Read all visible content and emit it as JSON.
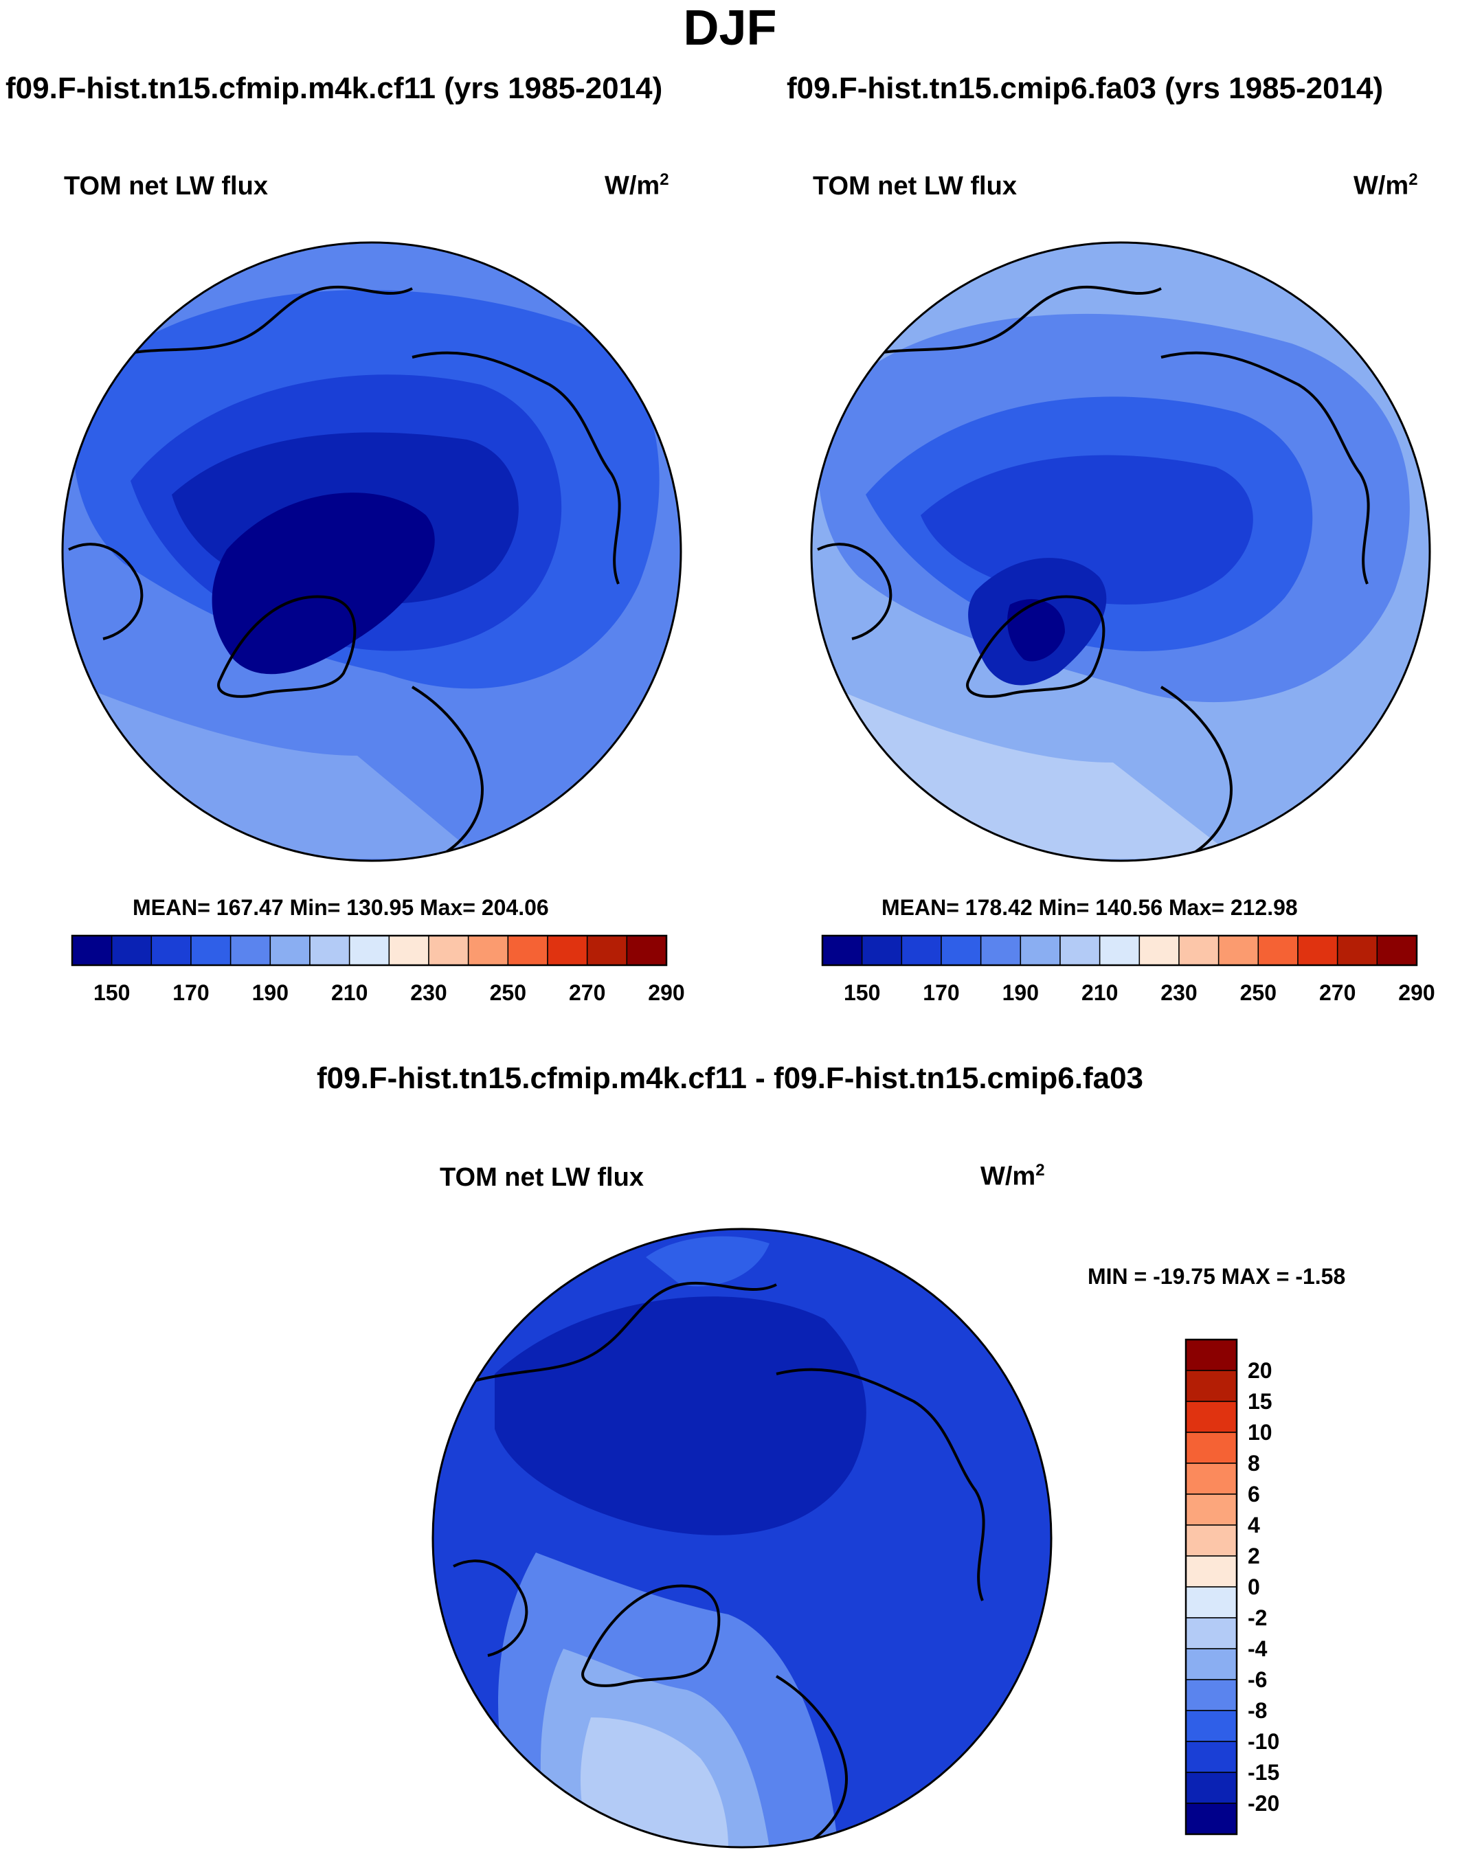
{
  "page_title": "DJF",
  "panels": [
    {
      "case_title": "f09.F-hist.tn15.cfmip.m4k.cf11 (yrs 1985-2014)",
      "variable": "TOM net LW flux",
      "units_base": "W/m",
      "units_exp": "2",
      "stats": "MEAN= 167.47  Min= 130.95  Max= 204.06"
    },
    {
      "case_title": "f09.F-hist.tn15.cmip6.fa03 (yrs 1985-2014)",
      "variable": "TOM net LW flux",
      "units_base": "W/m",
      "units_exp": "2",
      "stats": "MEAN= 178.42  Min= 140.56  Max= 212.98"
    }
  ],
  "diff_panel": {
    "title": "f09.F-hist.tn15.cfmip.m4k.cf11 - f09.F-hist.tn15.cmip6.fa03",
    "variable": "TOM net LW flux",
    "units_base": "W/m",
    "units_exp": "2",
    "minmax": "MIN = -19.75 MAX =  -1.58"
  },
  "chart_data": [
    {
      "type": "heatmap",
      "projection": "north polar stereographic",
      "title": "TOM net LW flux",
      "case": "f09.F-hist.tn15.cfmip.m4k.cf11 (yrs 1985-2014)",
      "units": "W/m2",
      "mean": 167.47,
      "min": 130.95,
      "max": 204.06,
      "colorbar_ticks": [
        "150",
        "170",
        "190",
        "210",
        "230",
        "250",
        "270",
        "290"
      ],
      "colorbar_colors": [
        "#00008b",
        "#0a22b4",
        "#1a3fd6",
        "#2f5fe8",
        "#5a84ee",
        "#8aaef2",
        "#b3cbf6",
        "#d9e8fb",
        "#fde8d8",
        "#fcc6a9",
        "#fb9b6f",
        "#f56234",
        "#e03310",
        "#b41e05",
        "#8b0000"
      ]
    },
    {
      "type": "heatmap",
      "projection": "north polar stereographic",
      "title": "TOM net LW flux",
      "case": "f09.F-hist.tn15.cmip6.fa03 (yrs 1985-2014)",
      "units": "W/m2",
      "mean": 178.42,
      "min": 140.56,
      "max": 212.98,
      "colorbar_ticks": [
        "150",
        "170",
        "190",
        "210",
        "230",
        "250",
        "270",
        "290"
      ],
      "colorbar_colors": [
        "#00008b",
        "#0a22b4",
        "#1a3fd6",
        "#2f5fe8",
        "#5a84ee",
        "#8aaef2",
        "#b3cbf6",
        "#d9e8fb",
        "#fde8d8",
        "#fcc6a9",
        "#fb9b6f",
        "#f56234",
        "#e03310",
        "#b41e05",
        "#8b0000"
      ]
    },
    {
      "type": "heatmap",
      "projection": "north polar stereographic",
      "title": "TOM net LW flux",
      "case": "f09.F-hist.tn15.cfmip.m4k.cf11 - f09.F-hist.tn15.cmip6.fa03",
      "units": "W/m2",
      "min": -19.75,
      "max": -1.58,
      "colorbar_ticks": [
        "20",
        "15",
        "10",
        "8",
        "6",
        "4",
        "2",
        "0",
        "-2",
        "-4",
        "-6",
        "-8",
        "-10",
        "-15",
        "-20"
      ],
      "colorbar_colors": [
        "#8b0000",
        "#b41e05",
        "#e03310",
        "#f56234",
        "#fb8a5c",
        "#fca67c",
        "#fcc6a9",
        "#fde8d8",
        "#d9e8fb",
        "#b3cbf6",
        "#8aaef2",
        "#5a84ee",
        "#2f5fe8",
        "#1a3fd6",
        "#0a22b4",
        "#00008b"
      ]
    }
  ]
}
